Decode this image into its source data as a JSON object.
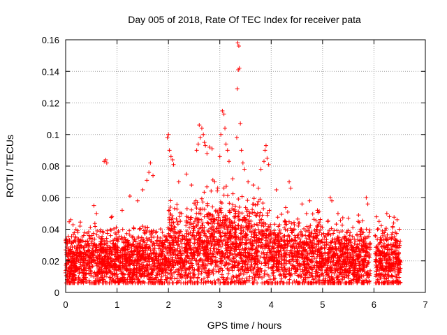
{
  "chart_data": {
    "type": "scatter",
    "title": "Day 005 of 2018, Rate Of TEC Index for receiver pata",
    "xlabel": "GPS time / hours",
    "ylabel": "ROTI / TECUs",
    "xlim": [
      0,
      7
    ],
    "ylim": [
      0,
      0.16
    ],
    "x_ticks": [
      0,
      1,
      2,
      3,
      4,
      5,
      6,
      7
    ],
    "y_ticks": [
      0,
      0.02,
      0.04,
      0.06,
      0.08,
      0.1,
      0.12,
      0.14,
      0.16
    ],
    "x_tick_labels": [
      "0",
      "1",
      "2",
      "3",
      "4",
      "5",
      "6",
      "7"
    ],
    "y_tick_labels": [
      "0",
      "0.02",
      "0.04",
      "0.06",
      "0.08",
      "0.1",
      "0.12",
      "0.14",
      "0.16"
    ],
    "grid": true,
    "marker": "+",
    "color": "#ff0000",
    "series": [
      {
        "name": "ROTI",
        "points": [
          [
            0.78,
            0.084
          ],
          [
            0.8,
            0.082
          ],
          [
            0.75,
            0.083
          ],
          [
            1.65,
            0.082
          ],
          [
            1.62,
            0.076
          ],
          [
            1.7,
            0.074
          ],
          [
            1.58,
            0.071
          ],
          [
            2.0,
            0.1
          ],
          [
            1.98,
            0.098
          ],
          [
            2.02,
            0.09
          ],
          [
            2.05,
            0.086
          ],
          [
            2.08,
            0.084
          ],
          [
            2.1,
            0.081
          ],
          [
            2.6,
            0.106
          ],
          [
            2.65,
            0.104
          ],
          [
            2.68,
            0.1
          ],
          [
            2.62,
            0.098
          ],
          [
            2.7,
            0.095
          ],
          [
            2.58,
            0.094
          ],
          [
            2.72,
            0.093
          ],
          [
            2.8,
            0.092
          ],
          [
            2.85,
            0.091
          ],
          [
            2.55,
            0.09
          ],
          [
            2.75,
            0.088
          ],
          [
            3.05,
            0.115
          ],
          [
            3.08,
            0.113
          ],
          [
            3.1,
            0.104
          ],
          [
            3.02,
            0.1
          ],
          [
            3.12,
            0.094
          ],
          [
            3.15,
            0.09
          ],
          [
            3.0,
            0.086
          ],
          [
            3.18,
            0.083
          ],
          [
            3.35,
            0.158
          ],
          [
            3.37,
            0.156
          ],
          [
            3.38,
            0.142
          ],
          [
            3.36,
            0.141
          ],
          [
            3.34,
            0.129
          ],
          [
            3.4,
            0.107
          ],
          [
            3.33,
            0.098
          ],
          [
            3.42,
            0.09
          ],
          [
            3.45,
            0.082
          ],
          [
            3.48,
            0.078
          ],
          [
            3.9,
            0.093
          ],
          [
            3.88,
            0.09
          ],
          [
            3.92,
            0.085
          ],
          [
            3.86,
            0.083
          ],
          [
            3.95,
            0.081
          ],
          [
            3.8,
            0.078
          ],
          [
            4.35,
            0.07
          ],
          [
            4.38,
            0.066
          ],
          [
            5.15,
            0.06
          ],
          [
            5.18,
            0.058
          ],
          [
            5.85,
            0.06
          ],
          [
            5.88,
            0.056
          ],
          [
            0.1,
            0.046
          ],
          [
            0.2,
            0.04
          ],
          [
            0.35,
            0.036
          ],
          [
            0.55,
            0.055
          ],
          [
            0.6,
            0.05
          ],
          [
            0.9,
            0.048
          ],
          [
            1.1,
            0.052
          ],
          [
            1.25,
            0.061
          ],
          [
            1.4,
            0.058
          ],
          [
            1.5,
            0.065
          ],
          [
            2.2,
            0.07
          ],
          [
            2.35,
            0.075
          ],
          [
            2.45,
            0.068
          ],
          [
            2.9,
            0.07
          ],
          [
            3.25,
            0.072
          ],
          [
            3.55,
            0.07
          ],
          [
            3.65,
            0.068
          ],
          [
            3.75,
            0.066
          ],
          [
            4.1,
            0.065
          ],
          [
            4.6,
            0.056
          ],
          [
            4.75,
            0.058
          ],
          [
            4.9,
            0.052
          ],
          [
            5.3,
            0.05
          ],
          [
            5.5,
            0.047
          ],
          [
            5.7,
            0.049
          ],
          [
            6.1,
            0.045
          ],
          [
            6.25,
            0.05
          ],
          [
            6.3,
            0.048
          ],
          [
            6.45,
            0.046
          ]
        ]
      }
    ]
  }
}
